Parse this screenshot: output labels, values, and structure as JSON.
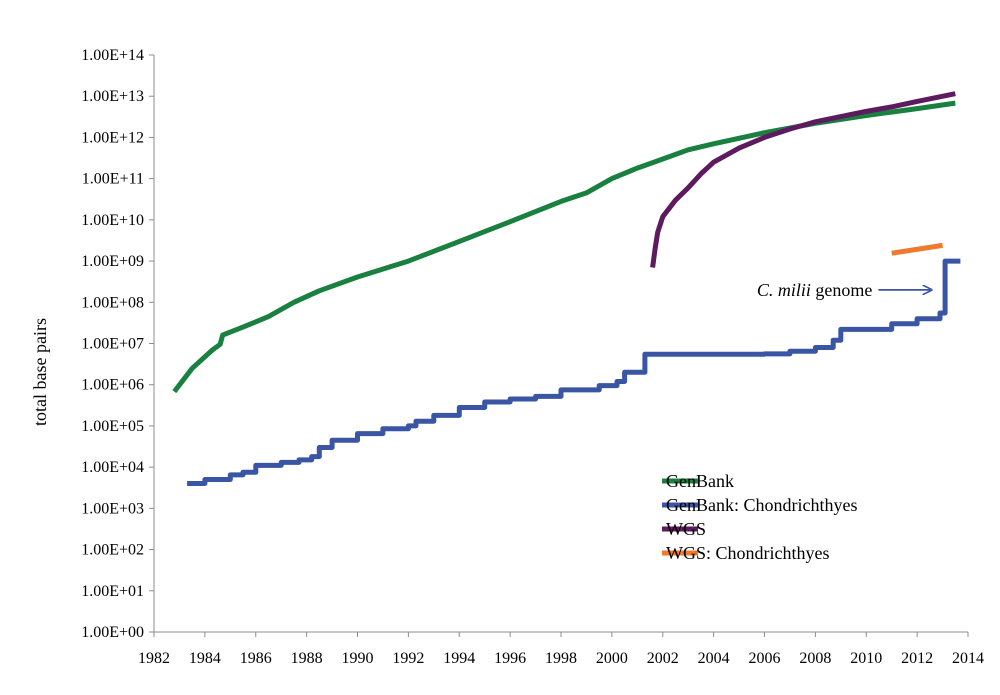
{
  "chart_data": {
    "type": "line",
    "title": "",
    "xlabel": "",
    "ylabel": "total base pairs",
    "y_scale": "log",
    "xlim": [
      1982,
      2014
    ],
    "ylim": [
      1,
      100000000000000
    ],
    "grid": false,
    "legend_position": "bottom-right",
    "x_ticks": [
      "1982",
      "1984",
      "1986",
      "1988",
      "1990",
      "1992",
      "1994",
      "1996",
      "1998",
      "2000",
      "2002",
      "2004",
      "2006",
      "2008",
      "2010",
      "2012",
      "2014"
    ],
    "y_ticks": [
      "1.00E+00",
      "1.00E+01",
      "1.00E+02",
      "1.00E+03",
      "1.00E+04",
      "1.00E+05",
      "1.00E+06",
      "1.00E+07",
      "1.00E+08",
      "1.00E+09",
      "1.00E+10",
      "1.00E+11",
      "1.00E+12",
      "1.00E+13",
      "1.00E+14"
    ],
    "series": [
      {
        "name": "GenBank",
        "color": "#1a8040",
        "step": false,
        "points": [
          [
            1982.8,
            680000
          ],
          [
            1983.5,
            2500000
          ],
          [
            1984.3,
            7000000
          ],
          [
            1984.6,
            9500000
          ],
          [
            1984.7,
            16000000
          ],
          [
            1985.5,
            25000000
          ],
          [
            1986.5,
            45000000
          ],
          [
            1987.5,
            100000000
          ],
          [
            1988.5,
            190000000
          ],
          [
            1990,
            410000000
          ],
          [
            1992,
            1000000000
          ],
          [
            1994,
            3000000000
          ],
          [
            1996,
            9000000000
          ],
          [
            1998,
            28000000000
          ],
          [
            1999,
            45000000000
          ],
          [
            2000,
            100000000000
          ],
          [
            2001,
            180000000000
          ],
          [
            2002,
            300000000000
          ],
          [
            2003,
            500000000000
          ],
          [
            2004,
            700000000000
          ],
          [
            2006,
            1300000000000
          ],
          [
            2008,
            2200000000000
          ],
          [
            2010,
            3400000000000
          ],
          [
            2012,
            5000000000000
          ],
          [
            2013.5,
            6800000000000
          ]
        ]
      },
      {
        "name": "GenBank: Chondrichthyes",
        "color": "#3a55a4",
        "step": true,
        "points": [
          [
            1983.3,
            4000
          ],
          [
            1984,
            5000
          ],
          [
            1985,
            6500
          ],
          [
            1985.5,
            7500
          ],
          [
            1986,
            11000
          ],
          [
            1987,
            13000
          ],
          [
            1987.7,
            15000
          ],
          [
            1988.2,
            18000
          ],
          [
            1988.5,
            30000
          ],
          [
            1989,
            45000
          ],
          [
            1990,
            65000
          ],
          [
            1991,
            85000
          ],
          [
            1992,
            100000
          ],
          [
            1992.3,
            130000
          ],
          [
            1993,
            180000
          ],
          [
            1994,
            280000
          ],
          [
            1995,
            380000
          ],
          [
            1996,
            450000
          ],
          [
            1997,
            520000
          ],
          [
            1998,
            750000
          ],
          [
            1999.5,
            950000
          ],
          [
            2000.2,
            1200000
          ],
          [
            2000.5,
            2000000
          ],
          [
            2001.3,
            5500000
          ],
          [
            2006,
            5600000
          ],
          [
            2007,
            6500000
          ],
          [
            2008,
            8000000
          ],
          [
            2008.7,
            12000000
          ],
          [
            2009,
            22000000
          ],
          [
            2011,
            30000000
          ],
          [
            2012,
            40000000
          ],
          [
            2012.9,
            55000000
          ],
          [
            2013.1,
            1000000000
          ],
          [
            2013.7,
            1000000000
          ]
        ]
      },
      {
        "name": "WGS",
        "color": "#5e1a5e",
        "step": false,
        "points": [
          [
            2001.6,
            700000000
          ],
          [
            2001.7,
            2000000000
          ],
          [
            2001.8,
            5000000000
          ],
          [
            2002,
            12000000000
          ],
          [
            2002.5,
            30000000000
          ],
          [
            2003,
            60000000000
          ],
          [
            2003.5,
            130000000000
          ],
          [
            2004,
            250000000000
          ],
          [
            2005,
            550000000000
          ],
          [
            2006,
            1000000000000
          ],
          [
            2007,
            1600000000000
          ],
          [
            2008,
            2400000000000
          ],
          [
            2009,
            3200000000000
          ],
          [
            2010,
            4300000000000
          ],
          [
            2011,
            5500000000000
          ],
          [
            2012,
            7500000000000
          ],
          [
            2013.5,
            11500000000000
          ]
        ]
      },
      {
        "name": "WGS: Chondrichthyes",
        "color": "#f07a2b",
        "step": false,
        "points": [
          [
            2011,
            1550000000
          ],
          [
            2013,
            2400000000
          ]
        ]
      }
    ],
    "annotations": [
      {
        "label_italic": "C. milii",
        "label_rest": " genome",
        "arrow_to": [
          2012.6,
          200000000
        ]
      }
    ]
  }
}
